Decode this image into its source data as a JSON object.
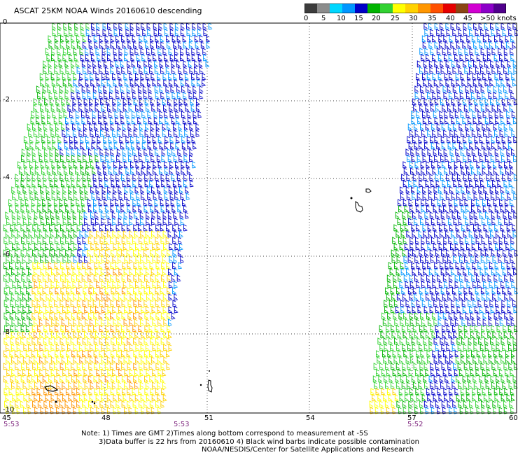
{
  "title": "ASCAT 25KM NOAA Winds 20160610 descending",
  "colorbar": {
    "colors": [
      "#3c3c3c",
      "#8c8c8c",
      "#00d7ff",
      "#0096ff",
      "#0000c8",
      "#00b400",
      "#32d232",
      "#ffff00",
      "#ffd200",
      "#ff9600",
      "#ff5000",
      "#e60000",
      "#8b4513",
      "#d200d2",
      "#8c00c8",
      "#50008c"
    ],
    "labels": [
      "0",
      "5",
      "10",
      "15",
      "20",
      "25",
      "30",
      "35",
      "40",
      "45",
      ">50 knots"
    ]
  },
  "axes": {
    "lat_ticks": [
      "0",
      "-2",
      "-4",
      "-6",
      "-8",
      "-10"
    ],
    "lon_ticks": [
      "45",
      "48",
      "51",
      "54",
      "57",
      "60"
    ]
  },
  "times": [
    "5:53",
    "5:53",
    "5:52"
  ],
  "notes": [
    "Note: 1) Times are GMT 2)Times along bottom correspond to measurement at -5S",
    "3)Data buffer is 22 hrs from 20160610 4) Black wind barbs indicate possible contamination",
    "NOAA/NESDIS/Center for Satellite Applications and Research"
  ]
}
